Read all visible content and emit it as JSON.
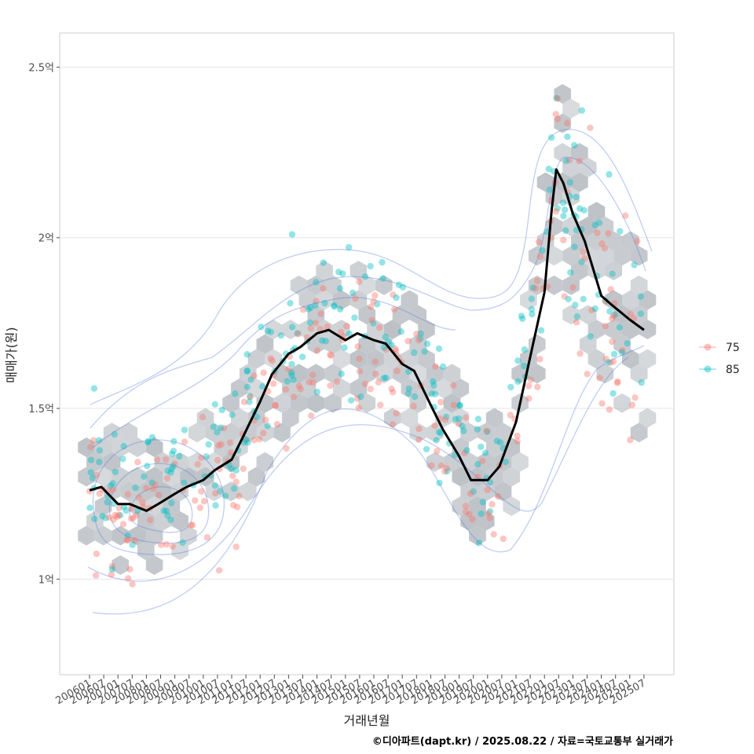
{
  "chart_data": {
    "type": "scatter",
    "xlabel": "거래년월",
    "ylabel": "매매가(원)",
    "caption": "©디아파트(dapt.kr) / 2025.08.22 / 자료=국토교통부 실거래가",
    "ylim": [
      0.72,
      2.6
    ],
    "y_unit": "억",
    "y_ticks": [
      {
        "value": 1.0,
        "label": "1억"
      },
      {
        "value": 1.5,
        "label": "1.5억"
      },
      {
        "value": 2.0,
        "label": "2억"
      },
      {
        "value": 2.5,
        "label": "2.5억"
      }
    ],
    "x_ticks": [
      "200601",
      "200607",
      "200701",
      "200707",
      "200801",
      "200807",
      "200901",
      "200907",
      "201001",
      "201007",
      "201101",
      "201107",
      "201201",
      "201207",
      "201301",
      "201307",
      "201401",
      "201407",
      "201501",
      "201507",
      "201601",
      "201607",
      "201701",
      "201707",
      "201801",
      "201807",
      "201901",
      "201907",
      "202001",
      "202007",
      "202101",
      "202107",
      "202201",
      "202207",
      "202301",
      "202307",
      "202401",
      "202407",
      "202501",
      "202507"
    ],
    "grid": true,
    "legend_position": "right",
    "legend": [
      {
        "label": "75",
        "color": "#f8766d"
      },
      {
        "label": "85",
        "color": "#00bfc4"
      }
    ],
    "colors": {
      "hex": "#b9bec3",
      "contour": "#4a6fdc",
      "trend": "#000000"
    },
    "trend": {
      "name": "",
      "x": [
        "2006-01",
        "2006-06",
        "2007-01",
        "2007-06",
        "2008-01",
        "2008-06",
        "2009-01",
        "2009-06",
        "2010-01",
        "2010-06",
        "2011-01",
        "2011-06",
        "2012-01",
        "2012-06",
        "2013-01",
        "2013-06",
        "2014-01",
        "2014-06",
        "2015-01",
        "2015-06",
        "2016-01",
        "2016-06",
        "2017-01",
        "2017-06",
        "2018-01",
        "2018-06",
        "2019-01",
        "2019-06",
        "2020-01",
        "2020-06",
        "2021-01",
        "2021-06",
        "2022-01",
        "2022-04",
        "2022-06",
        "2022-09",
        "2023-01",
        "2023-06",
        "2024-01",
        "2024-06",
        "2025-01",
        "2025-07"
      ],
      "y": [
        1.26,
        1.27,
        1.22,
        1.22,
        1.2,
        1.22,
        1.25,
        1.27,
        1.29,
        1.32,
        1.35,
        1.42,
        1.52,
        1.6,
        1.66,
        1.68,
        1.72,
        1.73,
        1.7,
        1.72,
        1.7,
        1.69,
        1.63,
        1.61,
        1.51,
        1.44,
        1.36,
        1.29,
        1.29,
        1.33,
        1.46,
        1.62,
        1.84,
        2.08,
        2.2,
        2.16,
        2.07,
        1.99,
        1.83,
        1.8,
        1.76,
        1.73
      ]
    }
  }
}
